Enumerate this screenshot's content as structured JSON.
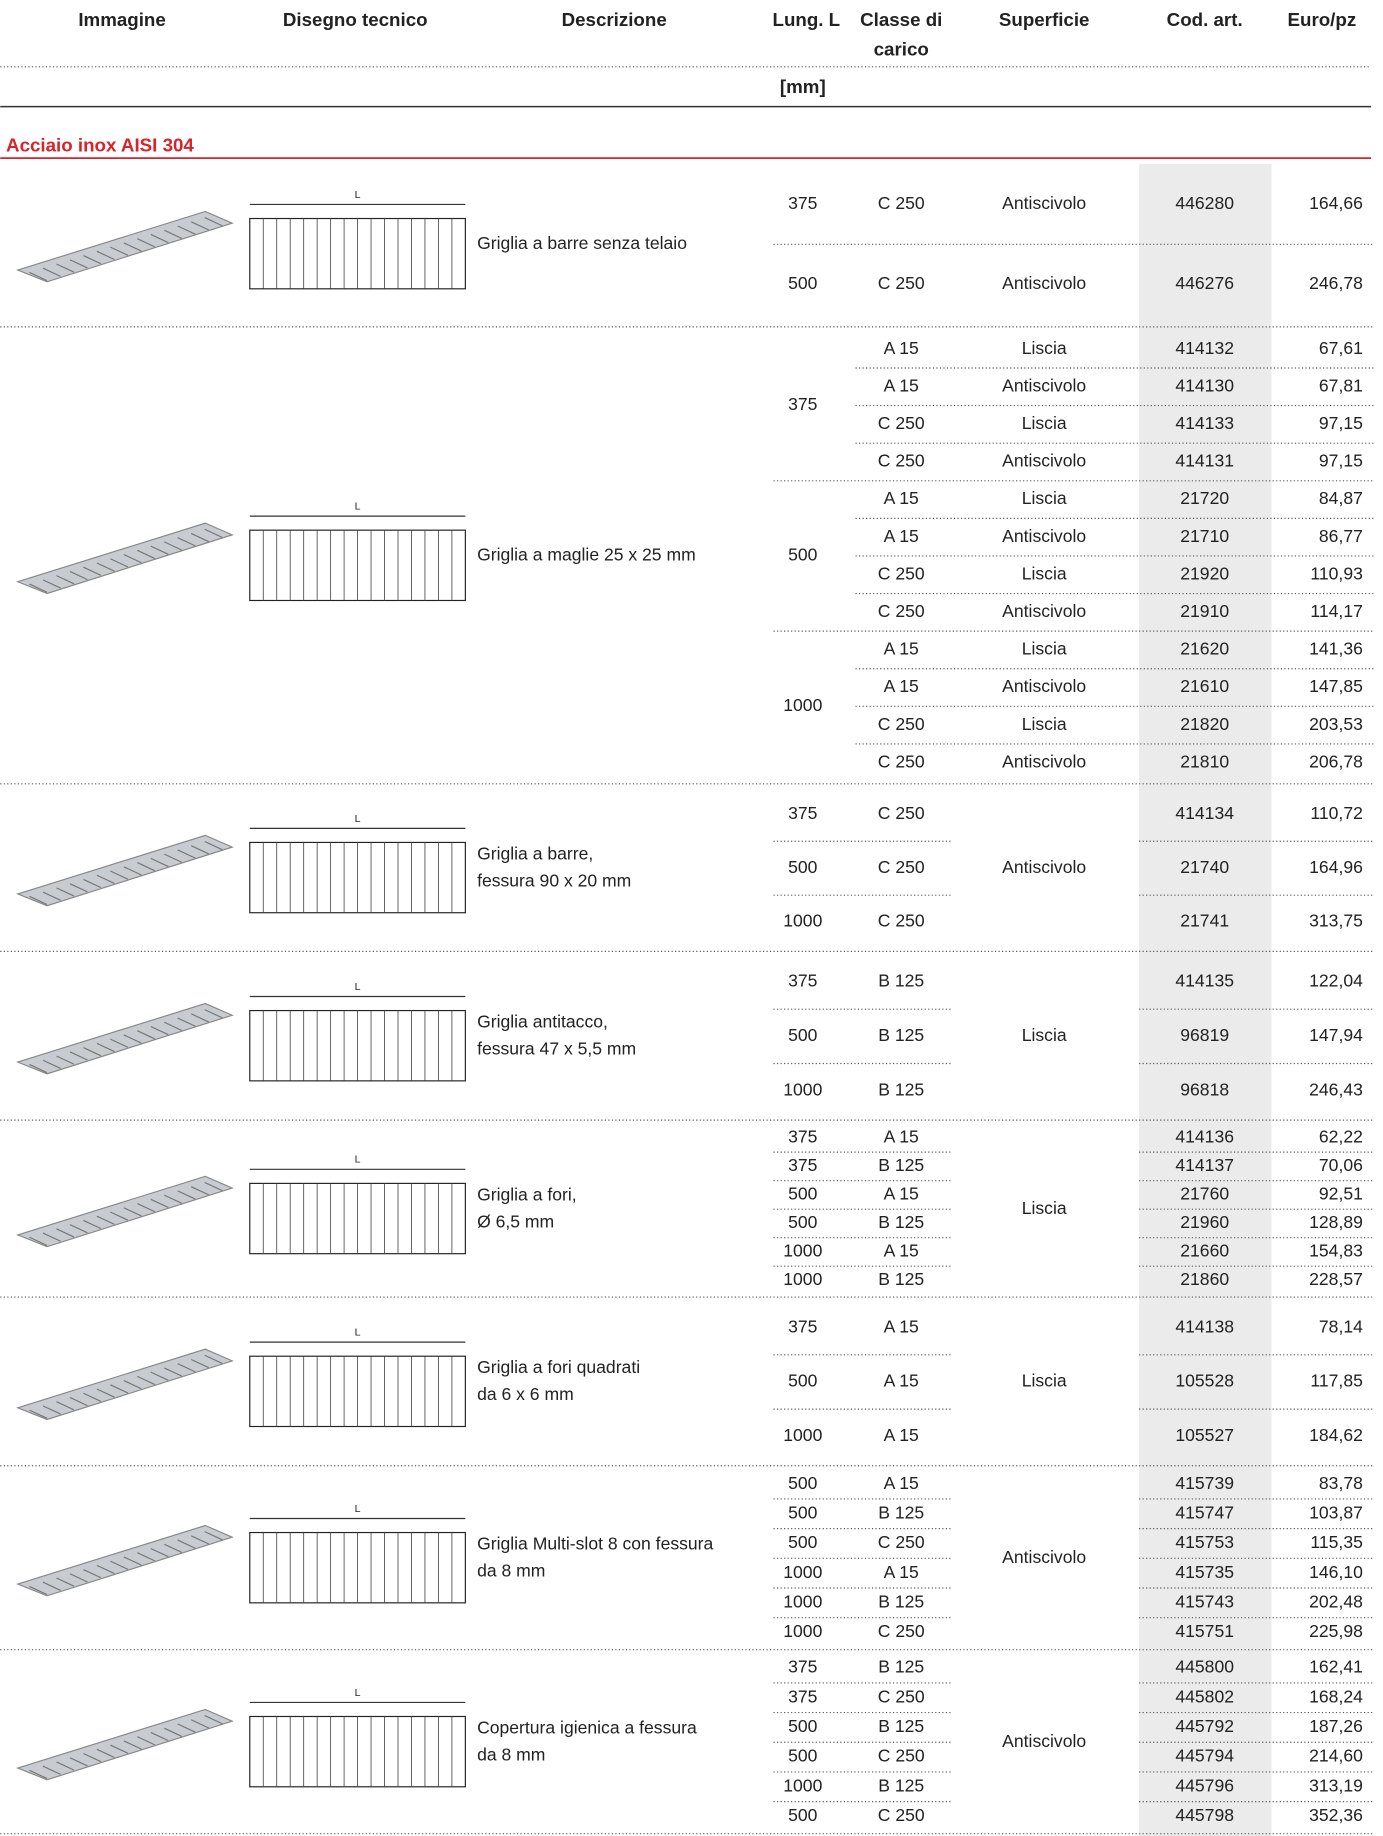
{
  "header": {
    "columns": [
      "Immagine",
      "Disegno tecnico",
      "Descrizione",
      "Lung. L",
      [
        "Classe di",
        "carico"
      ],
      "Superficie",
      "Cod. art.",
      "Euro/pz"
    ],
    "unit": "[mm]"
  },
  "section": "Acciaio inox AISI 304",
  "groups": [
    {
      "drawing_label": "L",
      "description": [
        "Griglia a barre senza telaio"
      ],
      "subgroups": [
        {
          "length": "375",
          "rows": [
            {
              "class": "C 250",
              "surface": "Antiscivolo",
              "code": "446280",
              "price": "164,66"
            }
          ]
        },
        {
          "length": "500",
          "rows": [
            {
              "class": "C 250",
              "surface": "Antiscivolo",
              "code": "446276",
              "price": "246,78"
            }
          ]
        }
      ]
    },
    {
      "drawing_label": "L",
      "description": [
        "Griglia a maglie 25 x 25 mm"
      ],
      "subgroups": [
        {
          "length": "375",
          "rows": [
            {
              "class": "A 15",
              "surface": "Liscia",
              "code": "414132",
              "price": "67,61"
            },
            {
              "class": "A 15",
              "surface": "Antiscivolo",
              "code": "414130",
              "price": "67,81"
            },
            {
              "class": "C 250",
              "surface": "Liscia",
              "code": "414133",
              "price": "97,15"
            },
            {
              "class": "C 250",
              "surface": "Antiscivolo",
              "code": "414131",
              "price": "97,15"
            }
          ]
        },
        {
          "length": "500",
          "rows": [
            {
              "class": "A 15",
              "surface": "Liscia",
              "code": "21720",
              "price": "84,87"
            },
            {
              "class": "A 15",
              "surface": "Antiscivolo",
              "code": "21710",
              "price": "86,77"
            },
            {
              "class": "C 250",
              "surface": "Liscia",
              "code": "21920",
              "price": "110,93"
            },
            {
              "class": "C 250",
              "surface": "Antiscivolo",
              "code": "21910",
              "price": "114,17"
            }
          ]
        },
        {
          "length": "1000",
          "rows": [
            {
              "class": "A 15",
              "surface": "Liscia",
              "code": "21620",
              "price": "141,36"
            },
            {
              "class": "A 15",
              "surface": "Antiscivolo",
              "code": "21610",
              "price": "147,85"
            },
            {
              "class": "C 250",
              "surface": "Liscia",
              "code": "21820",
              "price": "203,53"
            },
            {
              "class": "C 250",
              "surface": "Antiscivolo",
              "code": "21810",
              "price": "206,78"
            }
          ]
        }
      ]
    },
    {
      "drawing_label": "L",
      "description": [
        "Griglia a barre,",
        "fessura 90 x 20 mm"
      ],
      "surface": "Antiscivolo",
      "subgroups": [
        {
          "length": "375",
          "rows": [
            {
              "class": "C 250",
              "code": "414134",
              "price": "110,72"
            }
          ]
        },
        {
          "length": "500",
          "rows": [
            {
              "class": "C 250",
              "code": "21740",
              "price": "164,96"
            }
          ]
        },
        {
          "length": "1000",
          "rows": [
            {
              "class": "C 250",
              "code": "21741",
              "price": "313,75"
            }
          ]
        }
      ]
    },
    {
      "drawing_label": "L",
      "description": [
        "Griglia antitacco,",
        "fessura 47 x 5,5 mm"
      ],
      "surface": "Liscia",
      "subgroups": [
        {
          "length": "375",
          "rows": [
            {
              "class": "B 125",
              "code": "414135",
              "price": "122,04"
            }
          ]
        },
        {
          "length": "500",
          "rows": [
            {
              "class": "B 125",
              "code": "96819",
              "price": "147,94"
            }
          ]
        },
        {
          "length": "1000",
          "rows": [
            {
              "class": "B 125",
              "code": "96818",
              "price": "246,43"
            }
          ]
        }
      ]
    },
    {
      "drawing_label": "L",
      "description": [
        "Griglia a fori,",
        "Ø 6,5 mm"
      ],
      "surface": "Liscia",
      "subgroups": [
        {
          "length": "375",
          "rows": [
            {
              "class": "A 15",
              "code": "414136",
              "price": "62,22"
            }
          ]
        },
        {
          "length": "375",
          "rows": [
            {
              "class": "B 125",
              "code": "414137",
              "price": "70,06"
            }
          ]
        },
        {
          "length": "500",
          "rows": [
            {
              "class": "A 15",
              "code": "21760",
              "price": "92,51"
            }
          ]
        },
        {
          "length": "500",
          "rows": [
            {
              "class": "B 125",
              "code": "21960",
              "price": "128,89"
            }
          ]
        },
        {
          "length": "1000",
          "rows": [
            {
              "class": "A 15",
              "code": "21660",
              "price": "154,83"
            }
          ]
        },
        {
          "length": "1000",
          "rows": [
            {
              "class": "B 125",
              "code": "21860",
              "price": "228,57"
            }
          ]
        }
      ]
    },
    {
      "drawing_label": "L",
      "description": [
        "Griglia a fori quadrati",
        "da 6 x 6 mm"
      ],
      "surface": "Liscia",
      "subgroups": [
        {
          "length": "375",
          "rows": [
            {
              "class": "A 15",
              "code": "414138",
              "price": "78,14"
            }
          ]
        },
        {
          "length": "500",
          "rows": [
            {
              "class": "A 15",
              "code": "105528",
              "price": "117,85"
            }
          ]
        },
        {
          "length": "1000",
          "rows": [
            {
              "class": "A 15",
              "code": "105527",
              "price": "184,62"
            }
          ]
        }
      ]
    },
    {
      "drawing_label": "L",
      "description": [
        "Griglia Multi-slot 8 con fessura",
        "da 8 mm"
      ],
      "surface": "Antiscivolo",
      "subgroups": [
        {
          "length": "500",
          "rows": [
            {
              "class": "A 15",
              "code": "415739",
              "price": "83,78"
            }
          ]
        },
        {
          "length": "500",
          "rows": [
            {
              "class": "B 125",
              "code": "415747",
              "price": "103,87"
            }
          ]
        },
        {
          "length": "500",
          "rows": [
            {
              "class": "C 250",
              "code": "415753",
              "price": "115,35"
            }
          ]
        },
        {
          "length": "1000",
          "rows": [
            {
              "class": "A 15",
              "code": "415735",
              "price": "146,10"
            }
          ]
        },
        {
          "length": "1000",
          "rows": [
            {
              "class": "B 125",
              "code": "415743",
              "price": "202,48"
            }
          ]
        },
        {
          "length": "1000",
          "rows": [
            {
              "class": "C 250",
              "code": "415751",
              "price": "225,98"
            }
          ]
        }
      ]
    },
    {
      "drawing_label": "L",
      "description": [
        "Copertura igienica a fessura",
        "da 8 mm"
      ],
      "surface": "Antiscivolo",
      "subgroups": [
        {
          "length": "375",
          "rows": [
            {
              "class": "B 125",
              "code": "445800",
              "price": "162,41"
            }
          ]
        },
        {
          "length": "375",
          "rows": [
            {
              "class": "C 250",
              "code": "445802",
              "price": "168,24"
            }
          ]
        },
        {
          "length": "500",
          "rows": [
            {
              "class": "B 125",
              "code": "445792",
              "price": "187,26"
            }
          ]
        },
        {
          "length": "500",
          "rows": [
            {
              "class": "C 250",
              "code": "445794",
              "price": "214,60"
            }
          ]
        },
        {
          "length": "1000",
          "rows": [
            {
              "class": "B 125",
              "code": "445796",
              "price": "313,19"
            }
          ]
        },
        {
          "length": "500",
          "rows": [
            {
              "class": "C 250",
              "code": "445798",
              "price": "352,36"
            }
          ]
        }
      ]
    }
  ]
}
